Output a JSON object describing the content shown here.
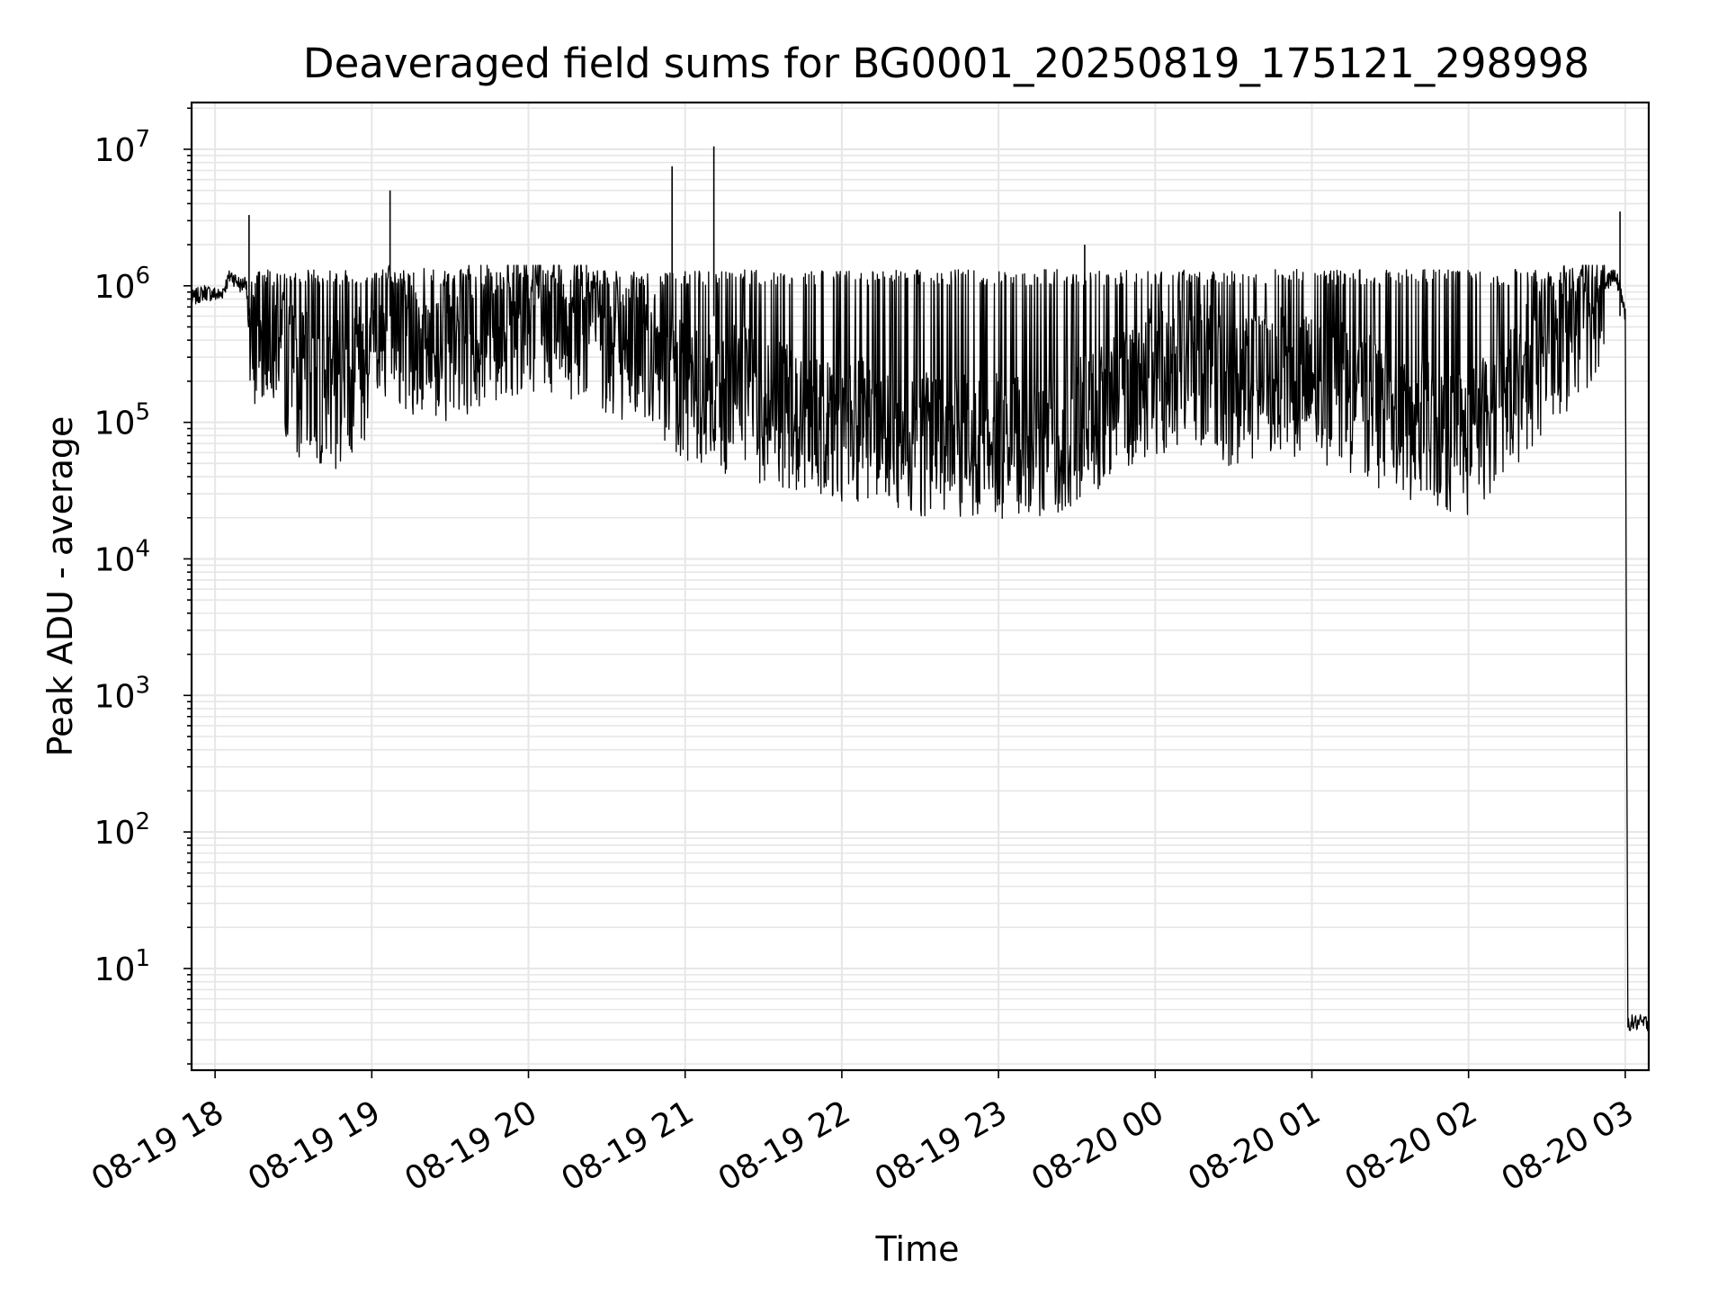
{
  "chart_data": {
    "type": "line",
    "title": "Deaveraged field sums for BG0001_20250819_175121_298998",
    "xlabel": "Time",
    "ylabel": "Peak ADU - average",
    "x_scale": "time",
    "y_scale": "log",
    "xlim": [
      "2025-08-19 17:51",
      "2025-08-20 03:09"
    ],
    "ylim": [
      1.8,
      22000000
    ],
    "x_ticks": [
      "08-19 18",
      "08-19 19",
      "08-19 20",
      "08-19 21",
      "08-19 22",
      "08-19 23",
      "08-20 00",
      "08-20 01",
      "08-20 02",
      "08-20 03"
    ],
    "y_ticks": [
      {
        "base": "10",
        "exp": "1",
        "value": 10
      },
      {
        "base": "10",
        "exp": "2",
        "value": 100
      },
      {
        "base": "10",
        "exp": "3",
        "value": 1000
      },
      {
        "base": "10",
        "exp": "4",
        "value": 10000
      },
      {
        "base": "10",
        "exp": "5",
        "value": 100000
      },
      {
        "base": "10",
        "exp": "6",
        "value": 1000000
      },
      {
        "base": "10",
        "exp": "7",
        "value": 10000000
      }
    ],
    "grid": true,
    "line_color": "#000000",
    "grid_color": "#e6e6e6",
    "series": [
      {
        "x": [
          "2025-08-19 17:51",
          "2025-08-19 17:56",
          "2025-08-19 18:02",
          "2025-08-19 18:06",
          "2025-08-19 18:10",
          "2025-08-19 18:12",
          "2025-08-19 18:13",
          "2025-08-19 18:15",
          "2025-08-19 18:20",
          "2025-08-19 18:30",
          "2025-08-19 18:45",
          "2025-08-19 19:00",
          "2025-08-19 19:05",
          "2025-08-19 19:15",
          "2025-08-19 19:30",
          "2025-08-19 19:45",
          "2025-08-19 20:00",
          "2025-08-19 20:15",
          "2025-08-19 20:30",
          "2025-08-19 20:45",
          "2025-08-19 20:55",
          "2025-08-19 21:10",
          "2025-08-19 21:20",
          "2025-08-19 21:30",
          "2025-08-19 21:45",
          "2025-08-19 22:00",
          "2025-08-19 22:15",
          "2025-08-19 22:30",
          "2025-08-19 22:45",
          "2025-08-19 23:00",
          "2025-08-19 23:15",
          "2025-08-19 23:30",
          "2025-08-19 23:45",
          "2025-08-20 00:00",
          "2025-08-20 00:15",
          "2025-08-20 00:30",
          "2025-08-20 00:45",
          "2025-08-20 01:00",
          "2025-08-20 01:15",
          "2025-08-20 01:30",
          "2025-08-20 01:45",
          "2025-08-20 02:00",
          "2025-08-20 02:15",
          "2025-08-20 02:30",
          "2025-08-20 02:45",
          "2025-08-20 02:55",
          "2025-08-20 02:58",
          "2025-08-20 03:00",
          "2025-08-20 03:01",
          "2025-08-20 03:09"
        ],
        "y": [
          800000,
          900000,
          850000,
          1200000,
          1000000,
          1100000,
          400000,
          300000,
          600000,
          200000,
          150000,
          300000,
          500000,
          400000,
          350000,
          500000,
          600000,
          500000,
          400000,
          300000,
          200000,
          150000,
          150000,
          120000,
          100000,
          90000,
          80000,
          70000,
          70000,
          70000,
          70000,
          80000,
          150000,
          200000,
          250000,
          150000,
          200000,
          180000,
          150000,
          100000,
          80000,
          70000,
          150000,
          300000,
          600000,
          1200000,
          1000000,
          600000,
          4,
          4
        ]
      }
    ],
    "spikes": [
      {
        "x": "2025-08-19 18:13",
        "y": 3300000
      },
      {
        "x": "2025-08-19 19:07",
        "y": 5000000
      },
      {
        "x": "2025-08-19 20:55",
        "y": 7500000
      },
      {
        "x": "2025-08-19 21:11",
        "y": 10500000
      },
      {
        "x": "2025-08-19 23:33",
        "y": 2000000
      },
      {
        "x": "2025-08-20 02:58",
        "y": 3500000
      }
    ]
  }
}
